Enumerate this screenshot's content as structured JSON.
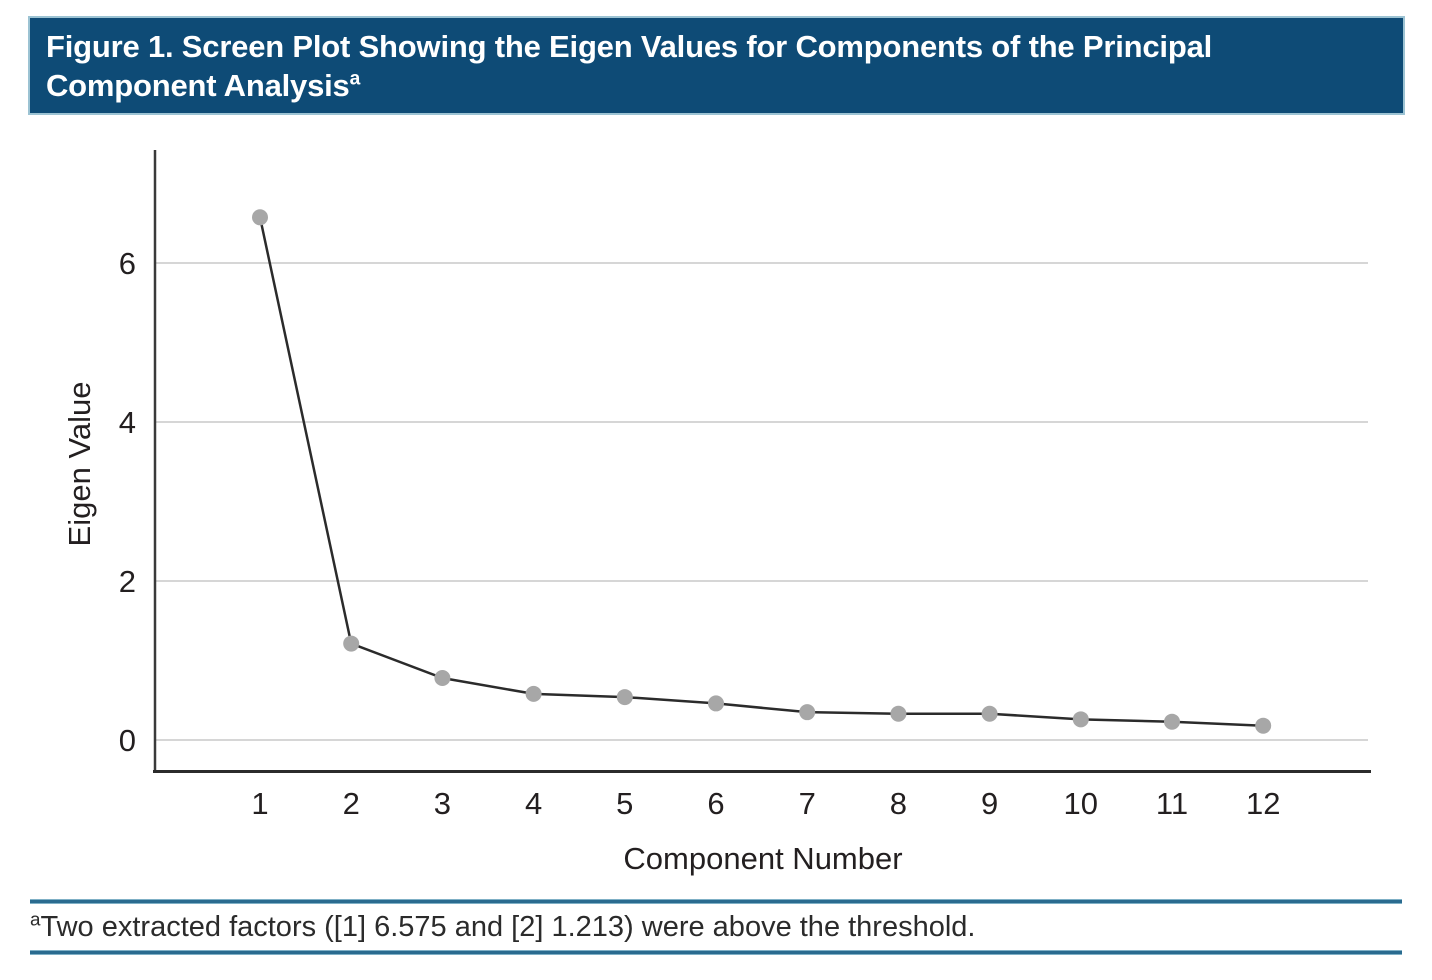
{
  "header": {
    "title_lines": [
      "Figure 1. Screen Plot Showing the Eigen Values for Components of the Principal",
      "Component Analysis"
    ],
    "note_marker": "a",
    "bg_color": "#0e4b76",
    "border_color": "#9cc3d3",
    "text_color": "#ffffff"
  },
  "chart_data": {
    "type": "line",
    "title": "Figure 1. Screen Plot Showing the Eigen Values for Components of the Principal Component Analysis",
    "x": [
      1,
      2,
      3,
      4,
      5,
      6,
      7,
      8,
      9,
      10,
      11,
      12
    ],
    "values": [
      6.575,
      1.213,
      0.78,
      0.58,
      0.54,
      0.46,
      0.35,
      0.33,
      0.33,
      0.26,
      0.23,
      0.18
    ],
    "xlabel": "Component Number",
    "ylabel": "Eigen Value",
    "yticks": [
      0,
      2,
      4,
      6
    ],
    "ylim": [
      -0.4,
      7.4
    ],
    "grid": true,
    "legend": "none",
    "marker": "circle",
    "colors": {
      "line": "#2b2b2b",
      "marker": "#a7a7a7",
      "grid": "#c9c9c9",
      "axis": "#3a3a3a",
      "tick_text": "#231f20"
    }
  },
  "footnote": {
    "marker": "a",
    "text": "Two extracted factors ([1] 6.575 and [2] 1.213) were above the threshold.",
    "rule_color": "#2a6b8f"
  }
}
